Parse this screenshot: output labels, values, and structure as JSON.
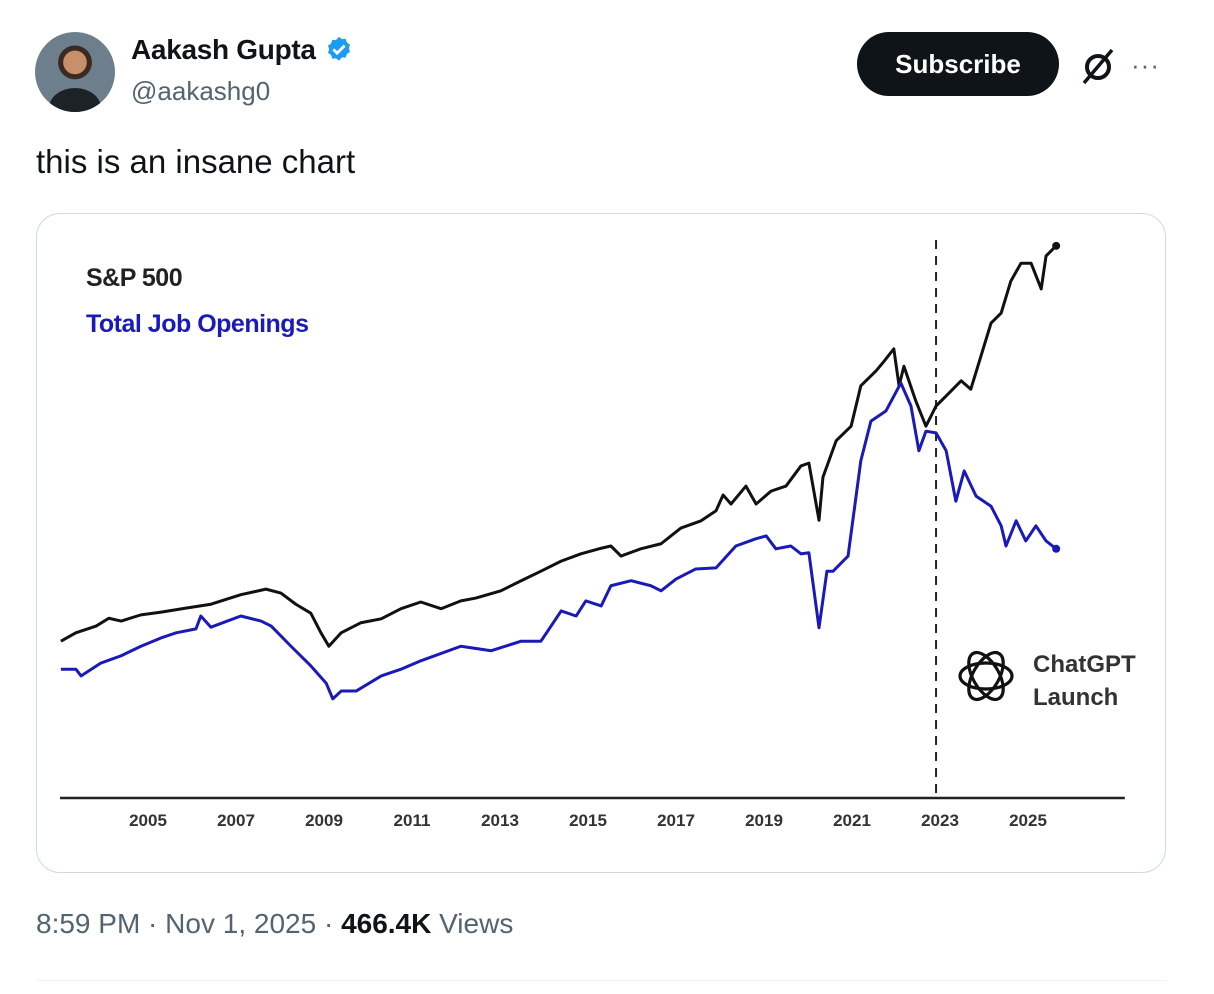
{
  "author": {
    "name": "Aakash Gupta",
    "handle": "@aakashg0",
    "verified": true
  },
  "actions": {
    "subscribe_label": "Subscribe",
    "grok_icon": "grok-icon",
    "more_label": "···"
  },
  "tweet": {
    "text": "this is an insane chart"
  },
  "footer": {
    "time": "8:59 PM",
    "date": "Nov 1, 2025",
    "sep": " · ",
    "views_count": "466.4K",
    "views_label": "Views"
  },
  "colors": {
    "sp500": "#111111",
    "jobs": "#1a1ab8",
    "verified": "#1d9bf0"
  },
  "chart_data": {
    "type": "line",
    "title": "",
    "xlabel": "",
    "ylabel": "",
    "y_units": "relative index (no y-axis shown)",
    "xlim": [
      2003,
      2027.2
    ],
    "ylim": [
      0,
      100
    ],
    "x_ticks": [
      "2005",
      "2007",
      "2009",
      "2011",
      "2013",
      "2015",
      "2017",
      "2019",
      "2021",
      "2023",
      "2025"
    ],
    "grid": false,
    "legend_placement": "top-left",
    "annotation": {
      "x": 2022.91,
      "line1": "ChatGPT",
      "line2": "Launch",
      "style": "dashed-vertical"
    },
    "series": [
      {
        "name": "S&P 500",
        "color": "#111111",
        "x": [
          2003.02,
          2003.36,
          2003.82,
          2004.11,
          2004.39,
          2004.84,
          2005.3,
          2005.86,
          2006.43,
          2007.11,
          2007.68,
          2008.02,
          2008.36,
          2008.7,
          2008.93,
          2009.11,
          2009.39,
          2009.84,
          2010.3,
          2010.75,
          2011.2,
          2011.66,
          2012.11,
          2012.45,
          2013.02,
          2013.48,
          2013.93,
          2014.39,
          2014.84,
          2015.3,
          2015.52,
          2015.75,
          2016.2,
          2016.66,
          2017.11,
          2017.57,
          2017.91,
          2018.07,
          2018.25,
          2018.59,
          2018.82,
          2019.16,
          2019.5,
          2019.84,
          2020.02,
          2020.25,
          2020.34,
          2020.64,
          2020.98,
          2021.2,
          2021.55,
          2021.73,
          2021.95,
          2022.07,
          2022.18,
          2022.45,
          2022.68,
          2022.91,
          2023.14,
          2023.48,
          2023.7,
          2023.93,
          2024.16,
          2024.39,
          2024.61,
          2024.84,
          2025.07,
          2025.3,
          2025.41,
          2025.64
        ],
        "values": [
          28.0,
          29.5,
          30.7,
          32.1,
          31.6,
          32.7,
          33.2,
          33.9,
          34.6,
          36.3,
          37.3,
          36.6,
          34.6,
          33.0,
          29.5,
          27.1,
          29.5,
          31.3,
          32.0,
          33.8,
          35.0,
          33.8,
          35.2,
          35.7,
          37.0,
          38.8,
          40.5,
          42.3,
          43.6,
          44.6,
          45.0,
          43.2,
          44.5,
          45.4,
          48.2,
          49.5,
          51.3,
          54.1,
          52.5,
          55.7,
          52.5,
          54.8,
          55.7,
          59.3,
          59.8,
          49.6,
          57.3,
          63.8,
          66.4,
          73.6,
          76.3,
          78.0,
          80.2,
          73.6,
          77.1,
          70.9,
          66.4,
          70.0,
          71.8,
          74.5,
          73.0,
          78.9,
          84.8,
          86.6,
          92.3,
          95.5,
          95.5,
          90.9,
          96.8,
          98.6
        ]
      },
      {
        "name": "Total Job Openings",
        "color": "#1a1ab8",
        "x": [
          2003.02,
          2003.36,
          2003.48,
          2003.93,
          2004.39,
          2004.84,
          2005.3,
          2005.64,
          2006.09,
          2006.2,
          2006.43,
          2007.11,
          2007.57,
          2007.8,
          2008.25,
          2008.7,
          2009.05,
          2009.2,
          2009.39,
          2009.73,
          2010.3,
          2010.75,
          2011.2,
          2012.11,
          2012.8,
          2013.48,
          2013.93,
          2014.39,
          2014.73,
          2014.95,
          2015.3,
          2015.52,
          2015.98,
          2016.43,
          2016.66,
          2017.0,
          2017.45,
          2017.91,
          2018.36,
          2018.82,
          2019.05,
          2019.27,
          2019.61,
          2019.84,
          2020.02,
          2020.25,
          2020.43,
          2020.57,
          2020.91,
          2021.2,
          2021.43,
          2021.77,
          2022.11,
          2022.34,
          2022.52,
          2022.68,
          2022.91,
          2023.14,
          2023.36,
          2023.55,
          2023.82,
          2024.16,
          2024.39,
          2024.5,
          2024.73,
          2024.95,
          2025.18,
          2025.41,
          2025.64
        ],
        "values": [
          23.0,
          23.0,
          21.8,
          24.1,
          25.4,
          27.1,
          28.6,
          29.5,
          30.2,
          32.5,
          30.5,
          32.5,
          31.6,
          30.7,
          27.1,
          23.6,
          20.5,
          17.7,
          19.1,
          19.1,
          21.8,
          23.0,
          24.5,
          27.1,
          26.3,
          28.0,
          28.0,
          33.4,
          32.5,
          35.2,
          34.3,
          37.9,
          38.8,
          37.9,
          37.0,
          39.1,
          40.9,
          41.1,
          45.0,
          46.3,
          46.8,
          44.5,
          45.0,
          43.6,
          43.8,
          30.4,
          40.5,
          40.5,
          43.2,
          60.2,
          67.3,
          69.1,
          74.1,
          70.0,
          62.0,
          65.5,
          65.2,
          62.0,
          53.0,
          58.4,
          53.9,
          52.1,
          48.6,
          45.0,
          49.5,
          45.9,
          48.6,
          45.9,
          44.5
        ]
      }
    ]
  }
}
